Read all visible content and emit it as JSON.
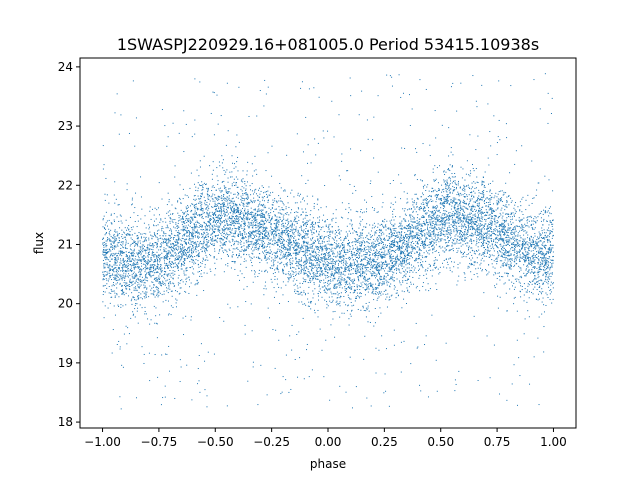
{
  "chart_data": {
    "type": "scatter",
    "title": "1SWASPJ220929.16+081005.0 Period 53415.10938s",
    "xlabel": "phase",
    "ylabel": "flux",
    "xlim": [
      -1.1,
      1.1
    ],
    "ylim": [
      17.9,
      24.15
    ],
    "xticks": [
      -1.0,
      -0.75,
      -0.5,
      -0.25,
      0.0,
      0.25,
      0.5,
      0.75,
      1.0
    ],
    "xtick_labels": [
      "−1.00",
      "−0.75",
      "−0.50",
      "−0.25",
      "0.00",
      "0.25",
      "0.50",
      "0.75",
      "1.00"
    ],
    "yticks": [
      18,
      19,
      20,
      21,
      22,
      23,
      24
    ],
    "ytick_labels": [
      "18",
      "19",
      "20",
      "21",
      "22",
      "23",
      "24"
    ],
    "series": [
      {
        "color": "#1f77b4",
        "marker_size": 1,
        "phase_range": [
          -1.0,
          1.0
        ],
        "light_curve": {
          "phase": [
            -1.0,
            -0.9,
            -0.8,
            -0.7,
            -0.6,
            -0.5,
            -0.45,
            -0.4,
            -0.3,
            -0.2,
            -0.1,
            0.0,
            0.1,
            0.2,
            0.3,
            0.4,
            0.5,
            0.55,
            0.6,
            0.7,
            0.8,
            0.9,
            1.0
          ],
          "flux": [
            20.78,
            20.65,
            20.7,
            20.85,
            21.15,
            21.45,
            21.5,
            21.45,
            21.3,
            21.05,
            20.85,
            20.72,
            20.65,
            20.7,
            20.85,
            21.15,
            21.45,
            21.5,
            21.45,
            21.3,
            21.05,
            20.85,
            20.78
          ]
        },
        "scatter_sigma": 0.38,
        "outlier_range": [
          18.2,
          23.9
        ]
      }
    ]
  }
}
